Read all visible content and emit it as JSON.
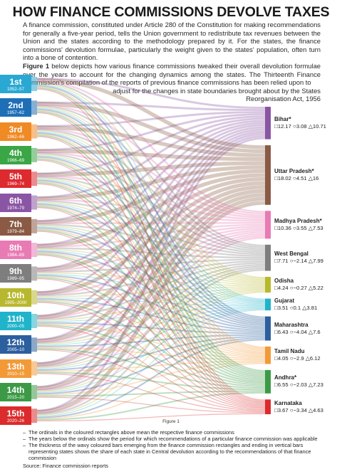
{
  "title": "HOW FINANCE COMMISSIONS DEVOLVE TAXES",
  "intro": {
    "p1": "A finance commission, constituted under Article 280 of the Constitution for making recommendations for generally a five-year period, tells the Union government to redistribute tax revenues between the Union and the states according to the methodology prepared by it. For the states, the finance commissions' devolution formulae, particularly the weight given to the states' population, often turn into a bone of contention.",
    "fig_ref": "Figure 1",
    "p2": " below depicts how various finance commissions tweaked their overall devolution formulae over the years to account for the changing dynamics among the states. The Thirteenth Finance Commission's compilation of the reports of previous finance commissions has been relied upon to",
    "p3": "adjust for the changes in state boundaries brought about by the States",
    "p4": "Reorganisation Act, 1956"
  },
  "commissions": [
    {
      "ordinal": "1st",
      "years": "1952–57",
      "color": "#29a8d3"
    },
    {
      "ordinal": "2nd",
      "years": "1957–62",
      "color": "#1f6fb7"
    },
    {
      "ordinal": "3rd",
      "years": "1962–66",
      "color": "#f08a24"
    },
    {
      "ordinal": "4th",
      "years": "1966–69",
      "color": "#3aa645"
    },
    {
      "ordinal": "5th",
      "years": "1969–74",
      "color": "#dd2a2f"
    },
    {
      "ordinal": "6th",
      "years": "1974–79",
      "color": "#8b55a5"
    },
    {
      "ordinal": "7th",
      "years": "1979–84",
      "color": "#8a5a44"
    },
    {
      "ordinal": "8th",
      "years": "1984–89",
      "color": "#e87ab4"
    },
    {
      "ordinal": "9th",
      "years": "1989–95",
      "color": "#7e7e7e"
    },
    {
      "ordinal": "10th",
      "years": "1995–2000",
      "color": "#b8b82e"
    },
    {
      "ordinal": "11th",
      "years": "2000–05",
      "color": "#1fb4c9"
    },
    {
      "ordinal": "12th",
      "years": "2005–10",
      "color": "#2c5f9e"
    },
    {
      "ordinal": "13th",
      "years": "2010–15",
      "color": "#f29a38"
    },
    {
      "ordinal": "14th",
      "years": "2015–20",
      "color": "#3c9a46"
    },
    {
      "ordinal": "15th",
      "years": "2020–26",
      "color": "#dc2b2c"
    }
  ],
  "states": [
    {
      "name": "Bihar",
      "marker": "*",
      "square": "12.17",
      "circle": "3.08",
      "triangle": "10.71",
      "color": "#8b55a5",
      "share": 0.097
    },
    {
      "name": "Uttar Pradesh",
      "marker": "*",
      "square": "18.02",
      "circle": "4.51",
      "triangle": "16",
      "color": "#8a5a44",
      "share": 0.178
    },
    {
      "name": "Madhya Pradesh",
      "marker": "*",
      "square": "10.36",
      "circle": "3.55",
      "triangle": "7.53",
      "color": "#e87ab4",
      "share": 0.083
    },
    {
      "name": "West Bengal",
      "marker": "",
      "square": "7.71",
      "circle": "−2.14",
      "triangle": "7.99",
      "color": "#7e7e7e",
      "share": 0.078
    },
    {
      "name": "Odisha",
      "marker": "",
      "square": "4.24",
      "circle": "−0.27",
      "triangle": "5.22",
      "color": "#b8b82e",
      "share": 0.047
    },
    {
      "name": "Gujarat",
      "marker": "",
      "square": "3.51",
      "circle": "0.1",
      "triangle": "3.81",
      "color": "#1fb4c9",
      "share": 0.035
    },
    {
      "name": "Maharashtra",
      "marker": "",
      "square": "6.43",
      "circle": "−4.04",
      "triangle": "7.6",
      "color": "#2c5f9e",
      "share": 0.072
    },
    {
      "name": "Tamil Nadu",
      "marker": "",
      "square": "4.05",
      "circle": "−2.9",
      "triangle": "6.12",
      "color": "#f29a38",
      "share": 0.052
    },
    {
      "name": "Andhra",
      "marker": "*",
      "square": "6.55",
      "circle": "−2.03",
      "triangle": "7.23",
      "color": "#3c9a46",
      "share": 0.07
    },
    {
      "name": "Karnataka",
      "marker": "",
      "square": "3.67",
      "circle": "−3.34",
      "triangle": "4.63",
      "color": "#dc2b2c",
      "share": 0.044
    }
  ],
  "symbols": {
    "square": "□",
    "circle": "○",
    "triangle": "△"
  },
  "figure_caption": "Figure 1",
  "notes": [
    "The ordinals in the coloured rectangles above mean the respective finance commissions",
    "The years below the ordinals show the period for which recommendations of a particular finance commission was applicable",
    "The thickness of the wavy coloured bars emerging from the finance commission rectangles and ending in vertical bars representing states shows the share of each state in Central devolution according to the recommendations of that finance commission"
  ],
  "note_dash": "–",
  "source": "Source: Finance commission reports"
}
